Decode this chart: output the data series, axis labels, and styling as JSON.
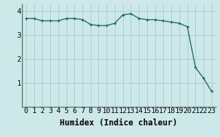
{
  "x": [
    0,
    1,
    2,
    3,
    4,
    5,
    6,
    7,
    8,
    9,
    10,
    11,
    12,
    13,
    14,
    15,
    16,
    17,
    18,
    19,
    20,
    21,
    22,
    23
  ],
  "y": [
    3.7,
    3.7,
    3.6,
    3.6,
    3.6,
    3.7,
    3.7,
    3.65,
    3.45,
    3.4,
    3.4,
    3.5,
    3.85,
    3.9,
    3.7,
    3.65,
    3.65,
    3.6,
    3.55,
    3.5,
    3.35,
    1.65,
    1.2,
    0.65
  ],
  "line_color": "#1a6b5e",
  "marker": "+",
  "xlabel": "Humidex (Indice chaleur)",
  "xlim": [
    -0.5,
    23.5
  ],
  "ylim": [
    0,
    4.3
  ],
  "yticks": [
    1,
    2,
    3,
    4
  ],
  "xtick_labels": [
    "0",
    "1",
    "2",
    "3",
    "4",
    "5",
    "6",
    "7",
    "8",
    "9",
    "10",
    "11",
    "12",
    "13",
    "14",
    "15",
    "16",
    "17",
    "18",
    "19",
    "20",
    "21",
    "22",
    "23"
  ],
  "bg_color": "#cce8e8",
  "grid_color": "#aacece",
  "font_size": 7.5,
  "xlabel_size": 8.5
}
